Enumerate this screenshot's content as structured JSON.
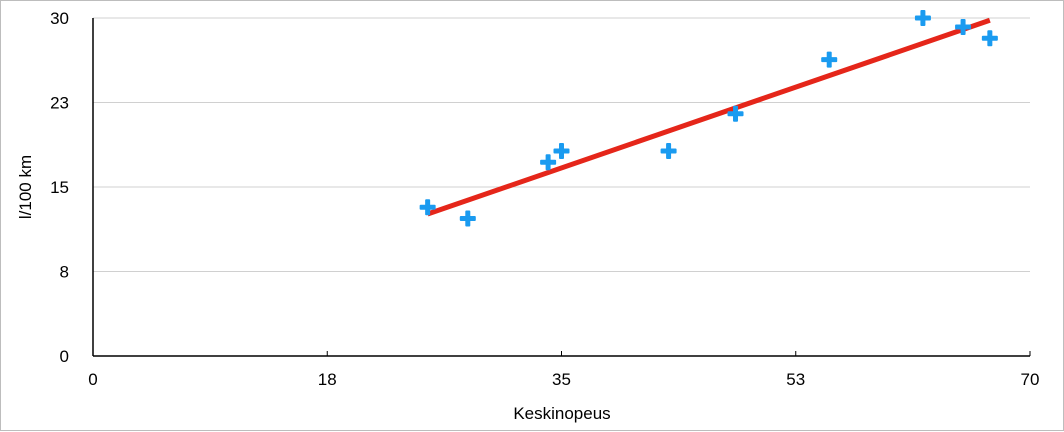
{
  "chart_data": {
    "type": "scatter",
    "xlabel": "Keskinopeus",
    "ylabel": "l/100 km",
    "xlim": [
      0,
      70
    ],
    "ylim": [
      0,
      30
    ],
    "x_ticks": [
      {
        "value": 0,
        "label": "0"
      },
      {
        "value": 17.5,
        "label": "18"
      },
      {
        "value": 35,
        "label": "35"
      },
      {
        "value": 52.5,
        "label": "53"
      },
      {
        "value": 70,
        "label": "70"
      }
    ],
    "y_ticks": [
      {
        "value": 0,
        "label": "0"
      },
      {
        "value": 7.5,
        "label": "8"
      },
      {
        "value": 15,
        "label": "15"
      },
      {
        "value": 22.5,
        "label": "23"
      },
      {
        "value": 30,
        "label": "30"
      }
    ],
    "grid": true,
    "series": [
      {
        "color": "#1a9bf0",
        "marker": "plus",
        "points": [
          {
            "x": 25,
            "y": 13.2
          },
          {
            "x": 28,
            "y": 12.2
          },
          {
            "x": 34,
            "y": 17.2
          },
          {
            "x": 35,
            "y": 18.2
          },
          {
            "x": 43,
            "y": 18.2
          },
          {
            "x": 48,
            "y": 21.5
          },
          {
            "x": 55,
            "y": 26.3
          },
          {
            "x": 62,
            "y": 30.0
          },
          {
            "x": 65,
            "y": 29.2
          },
          {
            "x": 67,
            "y": 28.2
          }
        ]
      }
    ],
    "trendline": {
      "color": "#e5261a",
      "from": {
        "x": 25,
        "y": 12.6
      },
      "to": {
        "x": 67,
        "y": 29.8
      }
    }
  }
}
